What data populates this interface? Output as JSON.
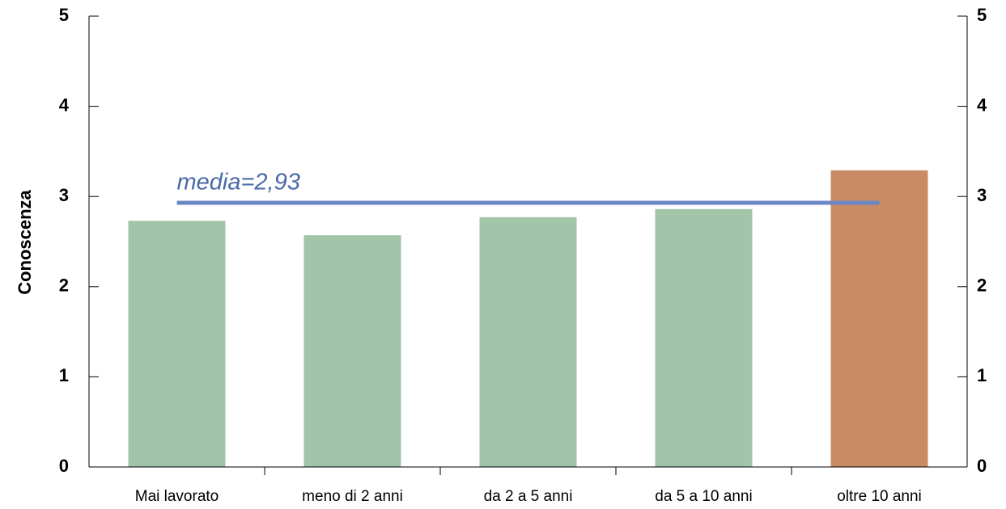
{
  "chart_data": {
    "type": "bar",
    "y_label": "Conoscenza",
    "categories": [
      "Mai lavorato",
      "meno di 2 anni",
      "da 2 a 5 anni",
      "da 5 a 10 anni",
      "oltre 10 anni"
    ],
    "values": [
      2.73,
      2.57,
      2.77,
      2.86,
      3.29
    ],
    "colors": [
      "#a2c4a9",
      "#a2c4a9",
      "#a2c4a9",
      "#a2c4a9",
      "#c98b63"
    ],
    "mean": 2.93,
    "mean_label": "media=2,93",
    "mean_color": "#6b86c4",
    "mean_label_color": "#4a6aa5",
    "ylim": [
      0,
      5
    ],
    "yticks": [
      0,
      1,
      2,
      3,
      4,
      5
    ],
    "y2lim": [
      0,
      5
    ],
    "y2ticks": [
      0,
      1,
      2,
      3,
      4,
      5
    ],
    "grid": false
  }
}
